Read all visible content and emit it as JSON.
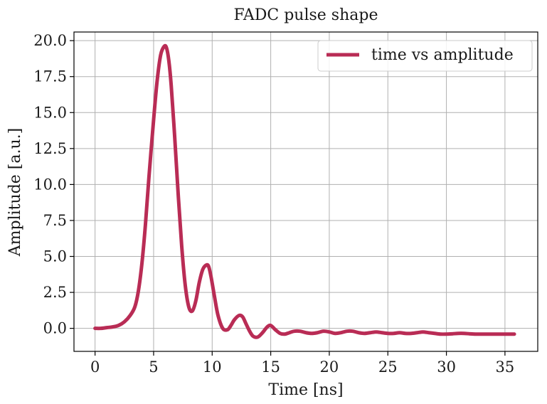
{
  "chart_data": {
    "type": "line",
    "title": "FADC pulse shape",
    "xlabel": "Time [ns]",
    "ylabel": "Amplitude [a.u.]",
    "xlim": [
      -1.8,
      37.8
    ],
    "ylim": [
      -1.6,
      20.6
    ],
    "xticks": [
      0,
      5,
      10,
      15,
      20,
      25,
      30,
      35
    ],
    "yticks": [
      0.0,
      2.5,
      5.0,
      7.5,
      10.0,
      12.5,
      15.0,
      17.5,
      20.0
    ],
    "xtick_labels": [
      "0",
      "5",
      "10",
      "15",
      "20",
      "25",
      "30",
      "35"
    ],
    "ytick_labels": [
      "0.0",
      "2.5",
      "5.0",
      "7.5",
      "10.0",
      "12.5",
      "15.0",
      "17.5",
      "20.0"
    ],
    "grid": true,
    "legend_position": "top-right",
    "series": [
      {
        "name": "time vs amplitude",
        "color": "#b92c55",
        "x": [
          0.0,
          0.5,
          1.0,
          1.5,
          2.0,
          2.5,
          3.0,
          3.4,
          3.7,
          4.0,
          4.3,
          4.6,
          5.0,
          5.3,
          5.6,
          5.9,
          6.1,
          6.3,
          6.5,
          6.8,
          7.1,
          7.4,
          7.7,
          8.0,
          8.3,
          8.6,
          8.9,
          9.2,
          9.5,
          9.7,
          9.9,
          10.2,
          10.5,
          10.9,
          11.3,
          11.6,
          11.9,
          12.3,
          12.6,
          12.9,
          13.2,
          13.5,
          13.9,
          14.3,
          14.7,
          15.0,
          15.4,
          15.8,
          16.2,
          16.6,
          17.0,
          17.5,
          18.0,
          18.5,
          19.0,
          19.5,
          20.0,
          20.5,
          21.0,
          21.5,
          22.0,
          22.5,
          23.0,
          23.5,
          24.0,
          24.5,
          25.0,
          25.5,
          26.0,
          26.5,
          27.0,
          27.5,
          28.0,
          28.5,
          29.0,
          29.5,
          30.0,
          30.5,
          31.0,
          31.5,
          32.0,
          32.5,
          33.0,
          33.5,
          34.0,
          34.5,
          35.0,
          35.5,
          35.8
        ],
        "y": [
          0.0,
          0.0,
          0.05,
          0.1,
          0.2,
          0.45,
          0.9,
          1.5,
          2.6,
          4.5,
          7.2,
          10.5,
          14.5,
          17.2,
          19.0,
          19.6,
          19.5,
          18.6,
          16.9,
          13.3,
          9.3,
          5.7,
          3.0,
          1.5,
          1.2,
          1.9,
          3.2,
          4.1,
          4.4,
          4.3,
          3.6,
          2.2,
          0.9,
          0.0,
          -0.1,
          0.2,
          0.6,
          0.9,
          0.8,
          0.3,
          -0.2,
          -0.55,
          -0.6,
          -0.3,
          0.1,
          0.2,
          -0.1,
          -0.35,
          -0.4,
          -0.3,
          -0.2,
          -0.2,
          -0.3,
          -0.35,
          -0.3,
          -0.2,
          -0.25,
          -0.35,
          -0.3,
          -0.2,
          -0.2,
          -0.3,
          -0.35,
          -0.3,
          -0.25,
          -0.3,
          -0.35,
          -0.35,
          -0.3,
          -0.35,
          -0.35,
          -0.3,
          -0.25,
          -0.3,
          -0.35,
          -0.4,
          -0.4,
          -0.38,
          -0.35,
          -0.35,
          -0.38,
          -0.4,
          -0.4,
          -0.4,
          -0.4,
          -0.4,
          -0.4,
          -0.4,
          -0.4
        ]
      }
    ]
  }
}
